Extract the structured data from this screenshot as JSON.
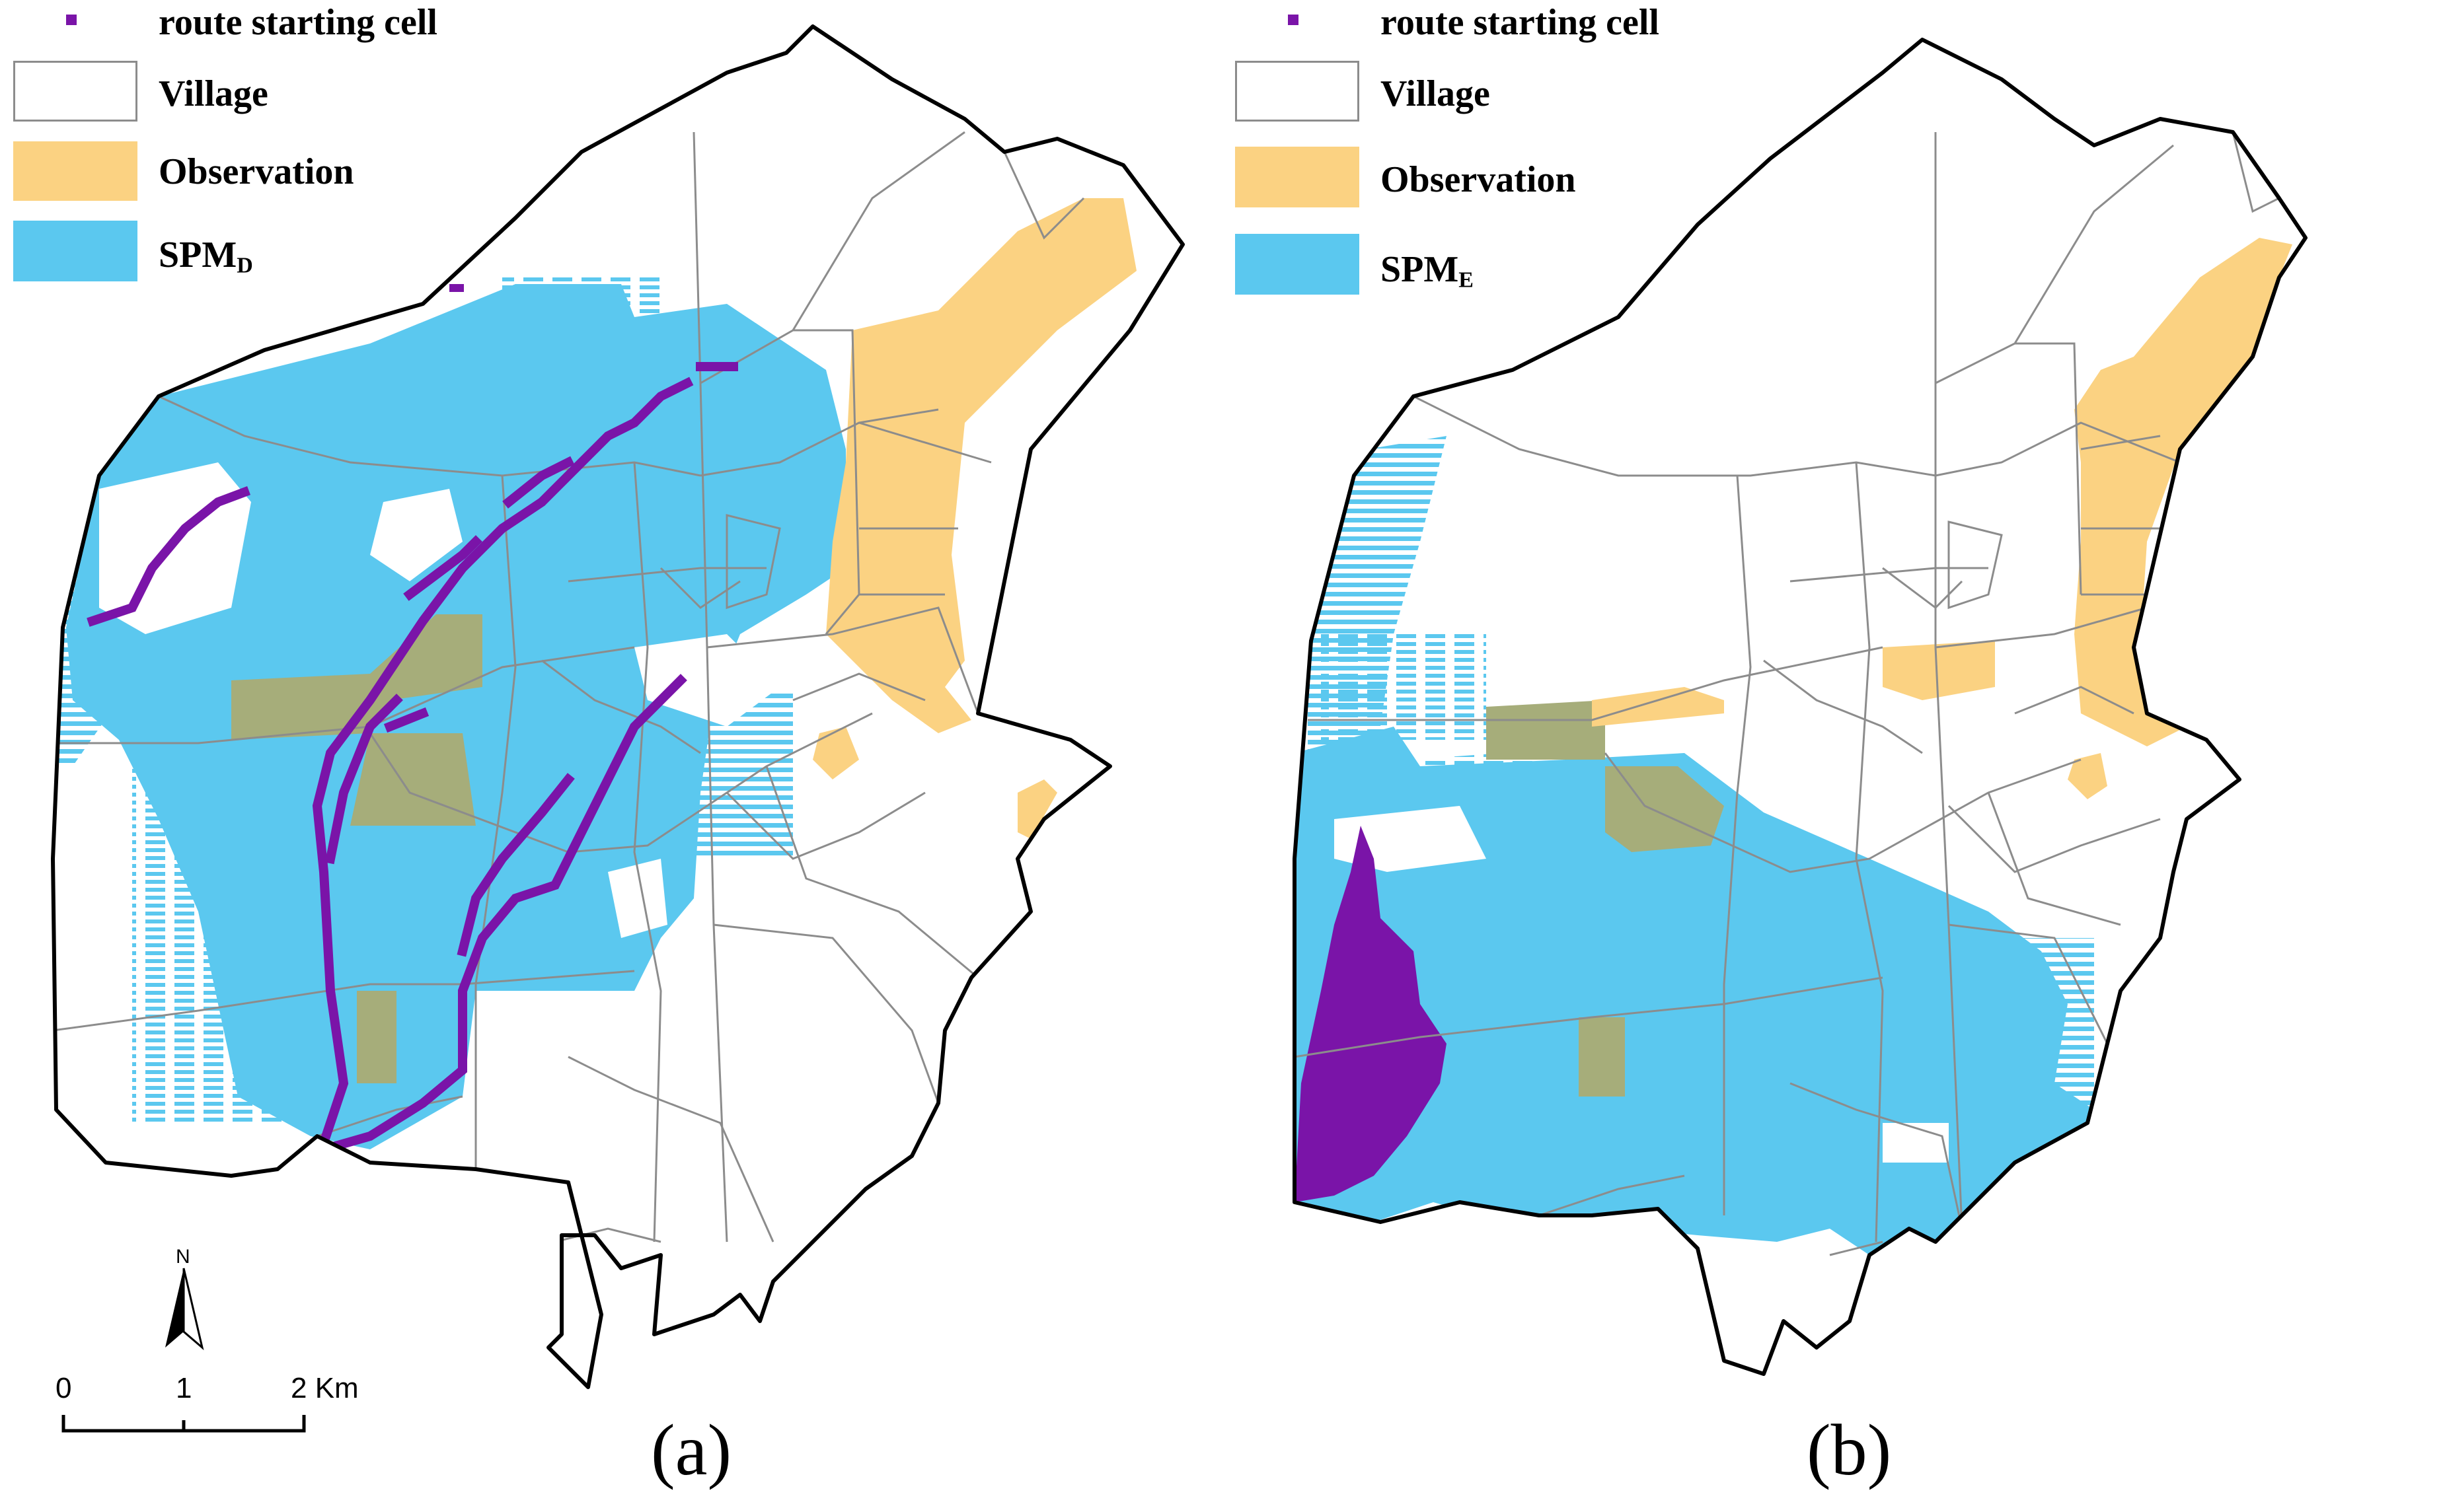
{
  "colors": {
    "route": "#7a14a8",
    "village_fill": "#ffffff",
    "observation": "#fbd282",
    "spm": "#5bc8ef",
    "overlap": "#a6ad7a",
    "boundary": "#000000",
    "village_line": "#8c8c8c"
  },
  "panels": [
    {
      "caption": "(a)",
      "legend": {
        "route": "route starting cell",
        "village": "Village",
        "observation": "Observation",
        "spm_base": "SPM",
        "spm_sub": "D"
      }
    },
    {
      "caption": "(b)",
      "legend": {
        "route": "route starting cell",
        "village": "Village",
        "observation": "Observation",
        "spm_base": "SPM",
        "spm_sub": "E"
      }
    }
  ],
  "scale_bar": {
    "labels": [
      "0",
      "1",
      "2 Km"
    ]
  },
  "north_arrow": {
    "label": "N"
  }
}
